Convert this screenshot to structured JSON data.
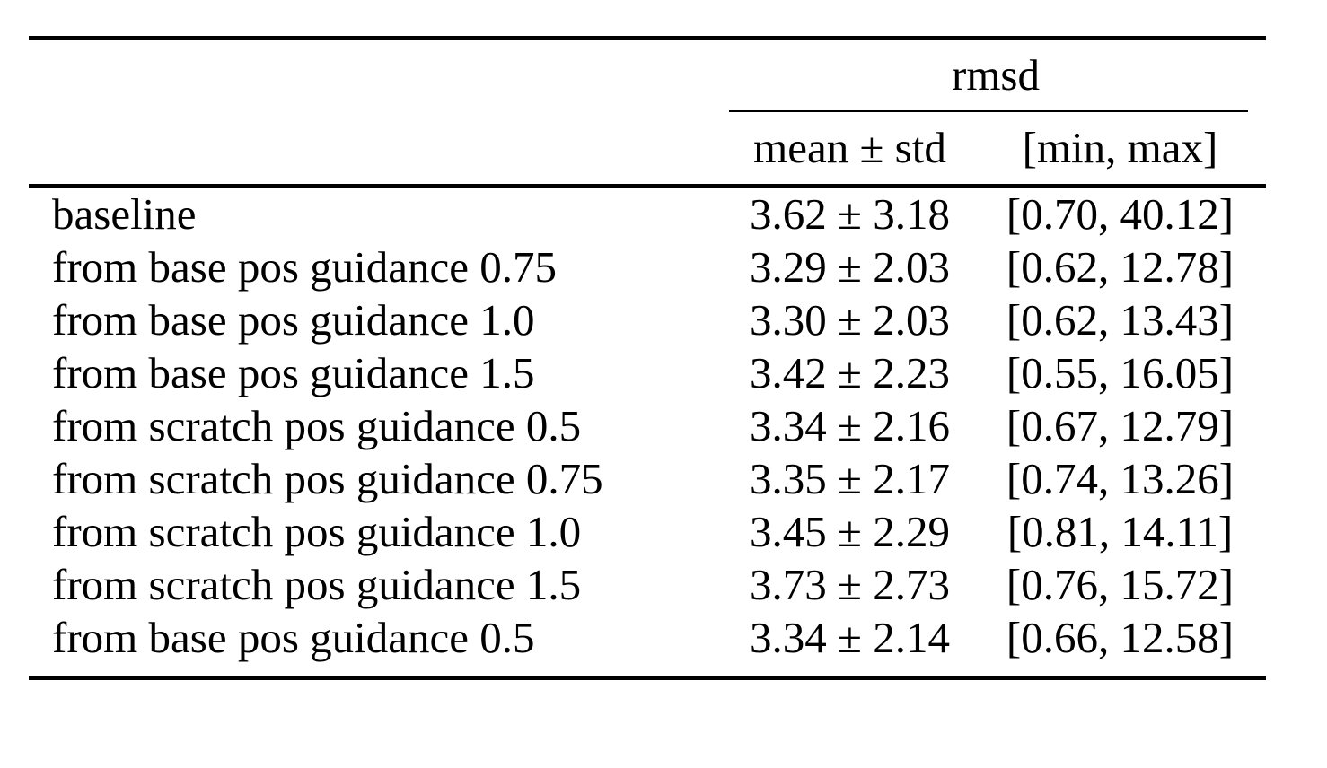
{
  "page": {
    "background": "#ffffff",
    "text_color": "#000000",
    "rule_color": "#000000"
  },
  "table": {
    "group_header": "rmsd",
    "columns": {
      "mean_std": "mean ± std",
      "min_max": "[min, max]"
    },
    "rows": [
      {
        "label": "baseline",
        "mean_std": "3.62 ± 3.18",
        "min_max": "[0.70, 40.12]"
      },
      {
        "label": "from base pos guidance 0.75",
        "mean_std": "3.29 ± 2.03",
        "min_max": "[0.62, 12.78]"
      },
      {
        "label": "from base pos guidance 1.0",
        "mean_std": "3.30 ± 2.03",
        "min_max": "[0.62, 13.43]"
      },
      {
        "label": "from base pos guidance 1.5",
        "mean_std": "3.42 ± 2.23",
        "min_max": "[0.55, 16.05]"
      },
      {
        "label": "from scratch pos guidance 0.5",
        "mean_std": "3.34 ± 2.16",
        "min_max": "[0.67, 12.79]"
      },
      {
        "label": "from scratch pos guidance 0.75",
        "mean_std": "3.35 ± 2.17",
        "min_max": "[0.74, 13.26]"
      },
      {
        "label": "from scratch pos guidance 1.0",
        "mean_std": "3.45 ± 2.29",
        "min_max": "[0.81, 14.11]"
      },
      {
        "label": "from scratch pos guidance 1.5",
        "mean_std": "3.73 ± 2.73",
        "min_max": "[0.76, 15.72]"
      },
      {
        "label": "from base pos guidance 0.5",
        "mean_std": "3.34 ± 2.14",
        "min_max": "[0.66, 12.58]"
      }
    ]
  },
  "chart_data": {
    "type": "table",
    "title": "rmsd",
    "columns": [
      "",
      "mean ± std",
      "[min, max]"
    ],
    "categories": [
      "baseline",
      "from base pos guidance 0.75",
      "from base pos guidance 1.0",
      "from base pos guidance 1.5",
      "from scratch pos guidance 0.5",
      "from scratch pos guidance 0.75",
      "from scratch pos guidance 1.0",
      "from scratch pos guidance 1.5",
      "from base pos guidance 0.5"
    ],
    "series": [
      {
        "name": "mean",
        "values": [
          3.62,
          3.29,
          3.3,
          3.42,
          3.34,
          3.35,
          3.45,
          3.73,
          3.34
        ]
      },
      {
        "name": "std",
        "values": [
          3.18,
          2.03,
          2.03,
          2.23,
          2.16,
          2.17,
          2.29,
          2.73,
          2.14
        ]
      },
      {
        "name": "min",
        "values": [
          0.7,
          0.62,
          0.62,
          0.55,
          0.67,
          0.74,
          0.81,
          0.76,
          0.66
        ]
      },
      {
        "name": "max",
        "values": [
          40.12,
          12.78,
          13.43,
          16.05,
          12.79,
          13.26,
          14.11,
          15.72,
          12.58
        ]
      }
    ]
  }
}
